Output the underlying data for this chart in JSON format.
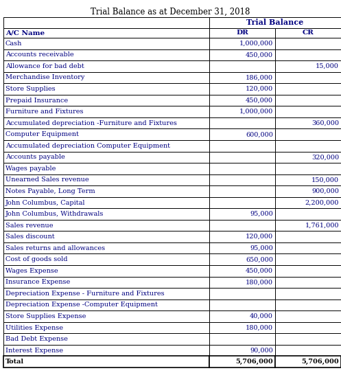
{
  "title": "Trial Balance as at December 31, 2018",
  "header_main": "Trial Balance",
  "col_headers": [
    "A/C Name",
    "DR",
    "CR"
  ],
  "rows": [
    [
      "Cash",
      "1,000,000",
      ""
    ],
    [
      "Accounts receivable",
      "450,000",
      ""
    ],
    [
      "Allowance for bad debt",
      "",
      "15,000"
    ],
    [
      "Merchandise Inventory",
      "186,000",
      ""
    ],
    [
      "Store Supplies",
      "120,000",
      ""
    ],
    [
      "Prepaid Insurance",
      "450,000",
      ""
    ],
    [
      "Furniture and Fixtures",
      "1,000,000",
      ""
    ],
    [
      "Accumulated depreciation -Furniture and Fixtures",
      "",
      "360,000"
    ],
    [
      "Computer Equipment",
      "600,000",
      ""
    ],
    [
      "Accumulated depreciation Computer Equipment",
      "",
      ""
    ],
    [
      "Accounts payable",
      "",
      "320,000"
    ],
    [
      "Wages payable",
      "",
      ""
    ],
    [
      "Unearned Sales revenue",
      "",
      "150,000"
    ],
    [
      "Notes Payable, Long Term",
      "",
      "900,000"
    ],
    [
      "John Columbus, Capital",
      "",
      "2,200,000"
    ],
    [
      "John Columbus, Withdrawals",
      "95,000",
      ""
    ],
    [
      "Sales revenue",
      "",
      "1,761,000"
    ],
    [
      "Sales discount",
      "120,000",
      ""
    ],
    [
      "Sales returns and allowances",
      "95,000",
      ""
    ],
    [
      "Cost of goods sold",
      "650,000",
      ""
    ],
    [
      "Wages Expense",
      "450,000",
      ""
    ],
    [
      "Insurance Expense",
      "180,000",
      ""
    ],
    [
      "Depreciation Expense - Furniture and Fixtures",
      "",
      ""
    ],
    [
      "Depreciation Expense -Computer Equipment",
      "",
      ""
    ],
    [
      "Store Supplies Expense",
      "40,000",
      ""
    ],
    [
      "Utilities Expense",
      "180,000",
      ""
    ],
    [
      "Bad Debt Expense",
      "",
      ""
    ],
    [
      "Interest Expense",
      "90,000",
      ""
    ],
    [
      "Total",
      "5,706,000",
      "5,706,000"
    ]
  ],
  "bg_color": "#ffffff",
  "border_color": "#000000",
  "title_fontsize": 8.5,
  "header_fontsize": 7.5,
  "cell_fontsize": 7.0,
  "text_color": "#000080",
  "total_text_color": "#000000"
}
